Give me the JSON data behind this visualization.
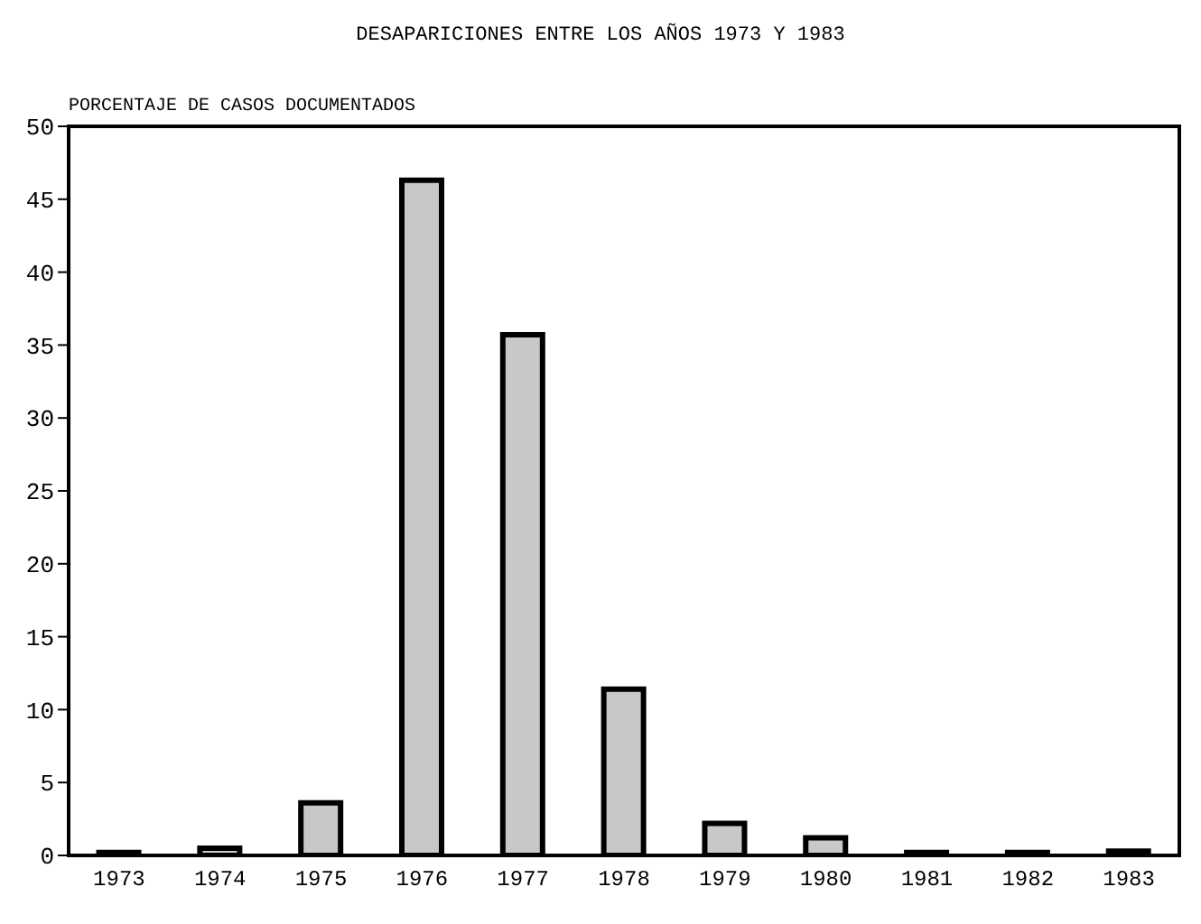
{
  "chart_data": {
    "type": "bar",
    "title": "DESAPARICIONES ENTRE LOS AÑOS 1973 Y 1983",
    "ylabel": "PORCENTAJE DE CASOS DOCUMENTADOS",
    "categories": [
      "1973",
      "1974",
      "1975",
      "1976",
      "1977",
      "1978",
      "1979",
      "1980",
      "1981",
      "1982",
      "1983"
    ],
    "values": [
      0.2,
      0.5,
      3.6,
      46.3,
      35.7,
      11.4,
      2.2,
      1.2,
      0.2,
      0.2,
      0.3
    ],
    "color": "#c8c8c8",
    "ylim": [
      0,
      50
    ],
    "yticks": [
      0,
      5,
      10,
      15,
      20,
      25,
      30,
      35,
      40,
      45,
      50
    ],
    "grid": false,
    "legend": false
  }
}
